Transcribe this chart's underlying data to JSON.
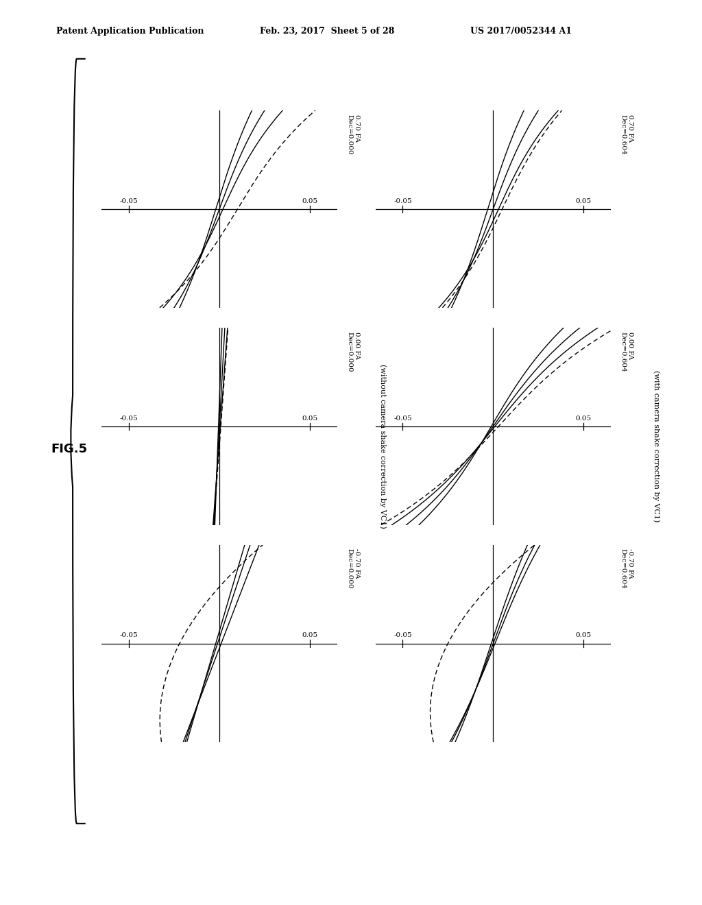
{
  "header_left": "Patent Application Publication",
  "header_mid": "Feb. 23, 2017  Sheet 5 of 28",
  "header_right": "US 2017/0052344 A1",
  "fig_label": "FIG.5",
  "right_panel_labels": [
    "0.70 FA\nDec=0.604",
    "0.00 FA\nDec=0.604",
    "-0.70 FA\nDec=0.604"
  ],
  "left_panel_labels": [
    "0.70 FA\nDec=0.000",
    "0.00 FA\nDec=0.000",
    "-0.70 FA\nDec=0.000"
  ],
  "right_col_caption": "(with camera shake correction by VC1)",
  "left_col_caption": "(without camera shake correction by VC1)",
  "xlim": [
    -0.065,
    0.065
  ],
  "ylim": [
    -1.0,
    1.0
  ],
  "bg_color": "#ffffff",
  "line_color": "#000000",
  "line_width": 1.0,
  "dash_pattern": [
    5,
    3
  ]
}
